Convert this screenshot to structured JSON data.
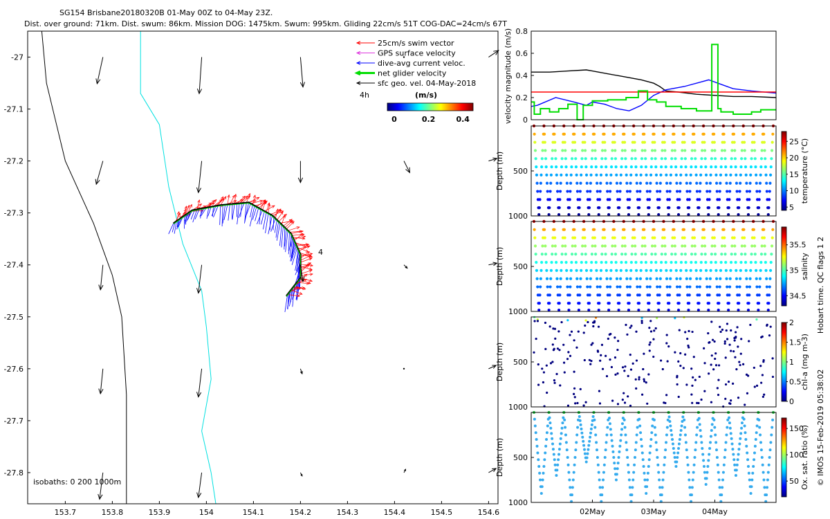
{
  "header": {
    "line1": "SG154 Brisbane20180320B 01-May 00Z to 04-May 23Z.",
    "line2": "Dist. over ground: 71km. Dist. swum: 86km. Mission DOG: 1475km. Swum: 995km. Gliding 22cm/s 51T COG-DAC=24cm/s 67T"
  },
  "colors": {
    "swim": "#ff0000",
    "gps": "#dd33dd",
    "dac": "#0000ff",
    "net": "#00dd00",
    "geo": "#000000",
    "coast_200": "#00e0e0",
    "isobath": "#000000",
    "red_ref": "#ff0000",
    "temp_colormap": [
      "#00007f",
      "#0000ff",
      "#007fff",
      "#00ffff",
      "#7fff7f",
      "#ffff00",
      "#ff7f00",
      "#ff0000",
      "#7f0000"
    ]
  },
  "chart_data": [
    {
      "id": "map",
      "type": "map",
      "xlim": [
        153.62,
        154.62
      ],
      "ylim": [
        -27.86,
        -26.95
      ],
      "x_ticks": [
        "153.7",
        "153.8",
        "153.9",
        "154",
        "154.1",
        "154.2",
        "154.3",
        "154.4",
        "154.5",
        "154.6"
      ],
      "x_tick_values": [
        153.7,
        153.8,
        153.9,
        154.0,
        154.1,
        154.2,
        154.3,
        154.4,
        154.5,
        154.6
      ],
      "y_ticks": [
        "-27",
        "-27.1",
        "-27.2",
        "-27.3",
        "-27.4",
        "-27.5",
        "-27.6",
        "-27.7",
        "-27.8"
      ],
      "y_tick_values": [
        -27.0,
        -27.1,
        -27.2,
        -27.3,
        -27.4,
        -27.5,
        -27.6,
        -27.7,
        -27.8
      ],
      "legend": {
        "items": [
          "25cm/s swim vector",
          "GPS surface velocity",
          "dive-avg current veloc.",
          "net glider velocity",
          "sfc geo. vel. 04-May-2018"
        ],
        "placement": "top-right",
        "time_label": "4h"
      },
      "colorbar": {
        "label": "(m/s)",
        "ticks": [
          "0",
          "0.2",
          "0.4"
        ],
        "range": [
          0,
          0.5
        ]
      },
      "isobath_label": "isobaths: 0   200  1000m",
      "track_label": "4",
      "isobath_0m": [
        [
          153.65,
          -26.95
        ],
        [
          153.66,
          -27.05
        ],
        [
          153.7,
          -27.2
        ],
        [
          153.76,
          -27.32
        ],
        [
          153.8,
          -27.42
        ],
        [
          153.82,
          -27.5
        ],
        [
          153.83,
          -27.65
        ],
        [
          153.83,
          -27.86
        ]
      ],
      "isobath_200m": [
        [
          153.86,
          -26.95
        ],
        [
          153.86,
          -27.07
        ],
        [
          153.9,
          -27.13
        ],
        [
          153.92,
          -27.25
        ],
        [
          153.95,
          -27.36
        ],
        [
          153.99,
          -27.45
        ],
        [
          154.0,
          -27.52
        ],
        [
          154.01,
          -27.62
        ],
        [
          153.99,
          -27.72
        ],
        [
          154.01,
          -27.8
        ],
        [
          154.02,
          -27.86
        ]
      ],
      "track": [
        [
          153.93,
          -27.32
        ],
        [
          153.97,
          -27.295
        ],
        [
          154.03,
          -27.285
        ],
        [
          154.09,
          -27.28
        ],
        [
          154.14,
          -27.305
        ],
        [
          154.18,
          -27.34
        ],
        [
          154.2,
          -27.38
        ],
        [
          154.2,
          -27.425
        ],
        [
          154.17,
          -27.46
        ]
      ],
      "geo_vectors": [
        {
          "lon": 153.78,
          "lat": -27.0,
          "u": -0.07,
          "v": -0.32
        },
        {
          "lon": 153.99,
          "lat": -27.0,
          "u": -0.03,
          "v": -0.44
        },
        {
          "lon": 154.2,
          "lat": -27.0,
          "u": 0.03,
          "v": -0.36
        },
        {
          "lon": 154.42,
          "lat": -27.0,
          "u": 0.0,
          "v": 0.0
        },
        {
          "lon": 154.6,
          "lat": -27.0,
          "u": 0.12,
          "v": 0.08
        },
        {
          "lon": 153.78,
          "lat": -27.2,
          "u": -0.08,
          "v": -0.28
        },
        {
          "lon": 153.99,
          "lat": -27.2,
          "u": -0.04,
          "v": -0.38
        },
        {
          "lon": 154.2,
          "lat": -27.2,
          "u": 0.0,
          "v": -0.26
        },
        {
          "lon": 154.42,
          "lat": -27.2,
          "u": 0.07,
          "v": -0.14
        },
        {
          "lon": 154.6,
          "lat": -27.2,
          "u": 0.1,
          "v": 0.03
        },
        {
          "lon": 153.78,
          "lat": -27.4,
          "u": -0.03,
          "v": -0.3
        },
        {
          "lon": 153.99,
          "lat": -27.4,
          "u": -0.04,
          "v": -0.34
        },
        {
          "lon": 154.2,
          "lat": -27.4,
          "u": 0.03,
          "v": -0.2
        },
        {
          "lon": 154.42,
          "lat": -27.4,
          "u": 0.04,
          "v": -0.04
        },
        {
          "lon": 154.6,
          "lat": -27.4,
          "u": 0.1,
          "v": 0.02
        },
        {
          "lon": 153.78,
          "lat": -27.6,
          "u": -0.03,
          "v": -0.3
        },
        {
          "lon": 153.99,
          "lat": -27.6,
          "u": -0.04,
          "v": -0.34
        },
        {
          "lon": 154.2,
          "lat": -27.6,
          "u": 0.02,
          "v": -0.06
        },
        {
          "lon": 154.42,
          "lat": -27.6,
          "u": 0.0,
          "v": 0.0
        },
        {
          "lon": 154.6,
          "lat": -27.6,
          "u": 0.09,
          "v": 0.04
        },
        {
          "lon": 153.78,
          "lat": -27.8,
          "u": -0.04,
          "v": -0.32
        },
        {
          "lon": 153.99,
          "lat": -27.8,
          "u": -0.04,
          "v": -0.3
        },
        {
          "lon": 154.2,
          "lat": -27.8,
          "u": 0.02,
          "v": -0.04
        },
        {
          "lon": 154.42,
          "lat": -27.8,
          "u": 0.02,
          "v": 0.04
        },
        {
          "lon": 154.6,
          "lat": -27.8,
          "u": 0.09,
          "v": 0.05
        }
      ]
    },
    {
      "id": "velocity",
      "type": "line",
      "ylabel": "velocity magnitude (m/s)",
      "ylim": [
        0,
        0.8
      ],
      "y_ticks": [
        "0",
        "0.2",
        "0.4",
        "0.6",
        "0.8"
      ],
      "y_tick_values": [
        0,
        0.2,
        0.4,
        0.6,
        0.8
      ],
      "xlim": [
        0,
        4
      ],
      "series": [
        {
          "name": "sfc geo. vel.",
          "color": "#000000",
          "x": [
            0,
            0.3,
            0.6,
            0.9,
            1.0,
            1.2,
            1.5,
            1.8,
            2.0,
            2.1,
            2.2,
            2.4,
            2.7,
            3.0,
            3.3,
            3.6,
            4.0
          ],
          "y": [
            0.43,
            0.43,
            0.44,
            0.45,
            0.44,
            0.42,
            0.39,
            0.36,
            0.33,
            0.3,
            0.26,
            0.25,
            0.23,
            0.22,
            0.21,
            0.21,
            0.2
          ]
        },
        {
          "name": "dive-avg current veloc.",
          "color": "#0000ff",
          "x": [
            0,
            0.1,
            0.4,
            0.7,
            0.9,
            1.0,
            1.2,
            1.4,
            1.6,
            1.8,
            2.0,
            2.2,
            2.5,
            2.9,
            3.1,
            3.3,
            3.6,
            4.0
          ],
          "y": [
            0.12,
            0.13,
            0.2,
            0.16,
            0.13,
            0.16,
            0.14,
            0.1,
            0.08,
            0.13,
            0.22,
            0.27,
            0.3,
            0.36,
            0.32,
            0.28,
            0.26,
            0.24
          ]
        },
        {
          "name": "reference 25 cm/s",
          "color": "#ff0000",
          "x": [
            0,
            4
          ],
          "y": [
            0.25,
            0.25
          ]
        },
        {
          "name": "net glider velocity",
          "color": "#00dd00",
          "x": [
            0,
            0.05,
            0.05,
            0.15,
            0.15,
            0.3,
            0.3,
            0.45,
            0.45,
            0.6,
            0.6,
            0.75,
            0.75,
            0.85,
            0.85,
            1.0,
            1.0,
            1.25,
            1.25,
            1.55,
            1.55,
            1.75,
            1.75,
            1.9,
            1.9,
            2.05,
            2.05,
            2.2,
            2.2,
            2.45,
            2.45,
            2.7,
            2.7,
            2.95,
            2.95,
            3.05,
            3.05,
            3.1,
            3.1,
            3.3,
            3.3,
            3.6,
            3.6,
            3.75,
            3.75,
            4.0
          ],
          "y": [
            0.16,
            0.16,
            0.05,
            0.05,
            0.1,
            0.1,
            0.07,
            0.07,
            0.1,
            0.1,
            0.14,
            0.14,
            0.0,
            0.0,
            0.13,
            0.13,
            0.17,
            0.17,
            0.18,
            0.18,
            0.2,
            0.2,
            0.26,
            0.26,
            0.18,
            0.18,
            0.16,
            0.16,
            0.12,
            0.12,
            0.1,
            0.1,
            0.08,
            0.08,
            0.68,
            0.68,
            0.1,
            0.1,
            0.07,
            0.07,
            0.05,
            0.05,
            0.07,
            0.07,
            0.09,
            0.09
          ]
        }
      ]
    },
    {
      "id": "temperature",
      "type": "scatter-depth",
      "ylabel": "Depth (m)",
      "cblabel": "temperature (°C)",
      "ylim": [
        0,
        1000
      ],
      "y_ticks": [
        "500",
        "1000"
      ],
      "y_tick_values": [
        500,
        1000
      ],
      "cbticks": [
        "5",
        "10",
        "15",
        "20",
        "25"
      ],
      "cbtick_values": [
        5,
        10,
        15,
        20,
        25
      ],
      "crange": [
        4,
        28
      ],
      "n_dives": 24,
      "max_depth": 1000,
      "surface_value": 27,
      "bottom_value": 4.5
    },
    {
      "id": "salinity",
      "type": "scatter-depth",
      "ylabel": "Depth (m)",
      "cblabel": "salinity",
      "ylim": [
        0,
        1000
      ],
      "y_ticks": [
        "500",
        "1000"
      ],
      "y_tick_values": [
        500,
        1000
      ],
      "cbticks": [
        "34.5",
        "35",
        "35.5"
      ],
      "cbtick_values": [
        34.5,
        35.0,
        35.5
      ],
      "crange": [
        34.3,
        35.85
      ],
      "n_dives": 24,
      "max_depth": 1000,
      "surface_value": 35.75,
      "bottom_value": 34.45
    },
    {
      "id": "chlorophyll",
      "type": "scatter-depth",
      "ylabel": "Depth (m)",
      "cblabel": "chl-a (mg m-3)",
      "ylim": [
        0,
        1000
      ],
      "y_ticks": [
        "500",
        "1000"
      ],
      "y_tick_values": [
        500,
        1000
      ],
      "cbticks": [
        "0",
        "0.5",
        "1",
        "1.5",
        "2"
      ],
      "cbtick_values": [
        0,
        0.5,
        1,
        1.5,
        2
      ],
      "crange": [
        0,
        2
      ],
      "n_dives": 24,
      "max_depth": 1000,
      "surface_value": 0.5,
      "bottom_value": 0.0
    },
    {
      "id": "oxygen",
      "type": "scatter-depth",
      "ylabel": "Depth (m)",
      "cblabel": "Ox. sat. ratio (%)",
      "ylim": [
        0,
        1000
      ],
      "y_ticks": [
        "500",
        "1000"
      ],
      "y_tick_values": [
        500,
        1000
      ],
      "cbticks": [
        "50",
        "100",
        "150"
      ],
      "cbtick_values": [
        50,
        100,
        150
      ],
      "crange": [
        20,
        170
      ],
      "n_dives": 16,
      "max_depth": 1000,
      "surface_value": 95,
      "bottom_value": 70,
      "x_ticks": [
        "02May",
        "03May",
        "04May"
      ],
      "x_tick_values": [
        1,
        2,
        3
      ]
    }
  ],
  "footer": {
    "qc_label": "Hobart time. QC flags 1  2",
    "credit": "© IMOS 15-Feb-2019 05:38:02"
  }
}
